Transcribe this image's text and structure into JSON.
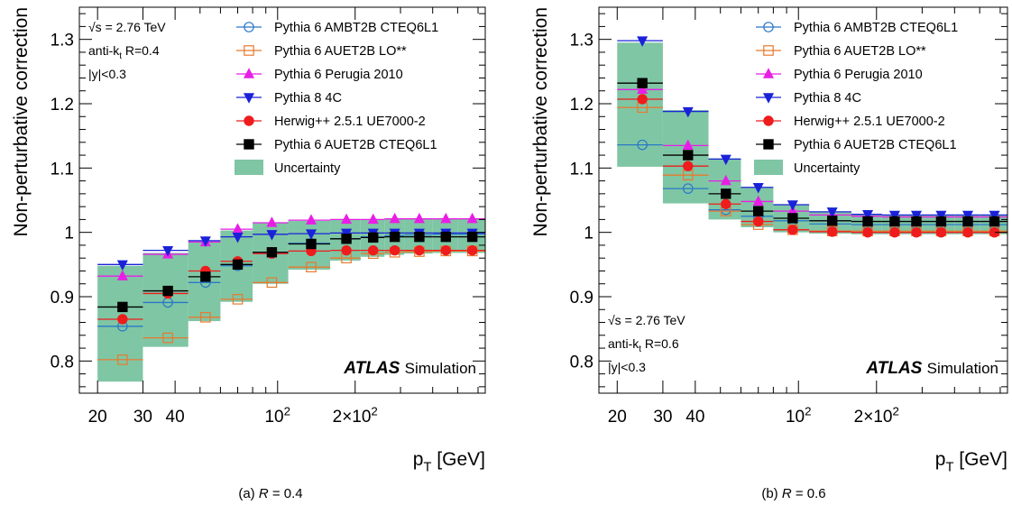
{
  "colors": {
    "band": "#7fc6a4",
    "ambt2b": "#2a78c8",
    "auet2b_lo": "#e8792e",
    "perugia": "#e81ee6",
    "p8": "#1a22d8",
    "herwig": "#ee1c1c",
    "auet2b_cteq": "#000000"
  },
  "chart_data": [
    {
      "type": "scatter",
      "id": "R04",
      "caption": "(a)  R = 0.4",
      "ylabel": "Non-perturbative correction",
      "xlabel": "p_T [GeV]",
      "xscale": "log",
      "xlim": [
        17,
        640
      ],
      "ylim": [
        0.75,
        1.35
      ],
      "x_ticks": [
        "20",
        "30",
        "40",
        "10^2",
        "2×10^2"
      ],
      "y_ticks": [
        "0.8",
        "0.9",
        "1",
        "1.1",
        "1.2",
        "1.3"
      ],
      "annotations": {
        "energy": "√s = 2.76 TeV",
        "algo": "anti-k_t R=0.4",
        "rapidity": "|y|<0.3",
        "atlas": "ATLAS",
        "sim": "Simulation"
      },
      "bins": [
        20,
        30,
        45,
        60,
        80,
        110,
        160,
        210,
        260,
        310,
        400,
        500,
        640
      ],
      "x_centers": [
        25,
        37.5,
        52.5,
        70,
        95,
        135,
        185,
        235,
        285,
        355,
        450,
        570
      ],
      "band": {
        "name": "Uncertainty",
        "low": [
          0.768,
          0.822,
          0.862,
          0.892,
          0.92,
          0.942,
          0.956,
          0.962,
          0.965,
          0.967,
          0.968,
          0.968
        ],
        "high": [
          0.948,
          0.968,
          0.985,
          1.003,
          1.015,
          1.018,
          1.02,
          1.02,
          1.021,
          1.021,
          1.021,
          1.021
        ]
      },
      "series": [
        {
          "name": "Pythia 6 AMBT2B CTEQ6L1",
          "key": "ambt2b",
          "marker": "circle-open",
          "values": [
            0.854,
            0.891,
            0.922,
            0.948,
            0.969,
            0.983,
            0.99,
            0.993,
            0.995,
            0.996,
            0.997,
            0.997
          ]
        },
        {
          "name": "Pythia 6 AUET2B LO**",
          "key": "auet2b_lo",
          "marker": "square-open",
          "values": [
            0.802,
            0.836,
            0.868,
            0.896,
            0.922,
            0.946,
            0.96,
            0.967,
            0.969,
            0.97,
            0.971,
            0.971
          ]
        },
        {
          "name": "Pythia 6 Perugia 2010",
          "key": "perugia",
          "marker": "triangle-up",
          "values": [
            0.932,
            0.966,
            0.985,
            1.005,
            1.015,
            1.019,
            1.02,
            1.02,
            1.021,
            1.021,
            1.021,
            1.021
          ]
        },
        {
          "name": "Pythia 8 4C",
          "key": "p8",
          "marker": "triangle-down",
          "values": [
            0.95,
            0.972,
            0.987,
            0.993,
            0.997,
            0.998,
            0.999,
            0.999,
            0.999,
            0.999,
            0.999,
            0.999
          ]
        },
        {
          "name": "Herwig++ 2.5.1 UE7000-2",
          "key": "herwig",
          "marker": "circle",
          "values": [
            0.865,
            0.905,
            0.94,
            0.955,
            0.967,
            0.971,
            0.972,
            0.972,
            0.972,
            0.972,
            0.972,
            0.972
          ]
        },
        {
          "name": "Pythia 6 AUET2B CTEQ6L1",
          "key": "auet2b_cteq",
          "marker": "square",
          "values": [
            0.884,
            0.909,
            0.931,
            0.95,
            0.969,
            0.982,
            0.99,
            0.992,
            0.993,
            0.993,
            0.993,
            0.993
          ]
        }
      ]
    },
    {
      "type": "scatter",
      "id": "R06",
      "caption": "(b)  R = 0.6",
      "ylabel": "Non-perturbative correction",
      "xlabel": "p_T [GeV]",
      "xscale": "log",
      "xlim": [
        17,
        640
      ],
      "ylim": [
        0.75,
        1.35
      ],
      "x_ticks": [
        "20",
        "30",
        "40",
        "10^2",
        "2×10^2"
      ],
      "y_ticks": [
        "0.8",
        "0.9",
        "1",
        "1.1",
        "1.2",
        "1.3"
      ],
      "annotations": {
        "energy": "√s = 2.76 TeV",
        "algo": "anti-k_t R=0.6",
        "rapidity": "|y|<0.3",
        "atlas": "ATLAS",
        "sim": "Simulation"
      },
      "bins": [
        20,
        30,
        45,
        60,
        80,
        110,
        160,
        210,
        260,
        310,
        400,
        500,
        640
      ],
      "x_centers": [
        25,
        37.5,
        52.5,
        70,
        95,
        135,
        185,
        235,
        285,
        355,
        450,
        570
      ],
      "band": {
        "name": "Uncertainty",
        "low": [
          1.102,
          1.045,
          1.02,
          1.008,
          1.0,
          0.998,
          0.997,
          0.997,
          0.997,
          0.997,
          0.997,
          0.997
        ],
        "high": [
          1.295,
          1.19,
          1.115,
          1.07,
          1.043,
          1.032,
          1.028,
          1.027,
          1.027,
          1.027,
          1.027,
          1.027
        ]
      },
      "series": [
        {
          "name": "Pythia 6 AMBT2B CTEQ6L1",
          "key": "ambt2b",
          "marker": "circle-open",
          "values": [
            1.136,
            1.068,
            1.035,
            1.025,
            1.018,
            1.013,
            1.012,
            1.012,
            1.012,
            1.012,
            1.012,
            1.012
          ]
        },
        {
          "name": "Pythia 6 AUET2B LO**",
          "key": "auet2b_lo",
          "marker": "square-open",
          "values": [
            1.194,
            1.089,
            1.033,
            1.012,
            1.004,
            1.002,
            1.002,
            1.002,
            1.002,
            1.002,
            1.002,
            1.002
          ]
        },
        {
          "name": "Pythia 6 Perugia 2010",
          "key": "perugia",
          "marker": "triangle-up",
          "values": [
            1.222,
            1.135,
            1.08,
            1.048,
            1.033,
            1.027,
            1.025,
            1.024,
            1.024,
            1.024,
            1.024,
            1.024
          ]
        },
        {
          "name": "Pythia 8 4C",
          "key": "p8",
          "marker": "triangle-down",
          "values": [
            1.298,
            1.188,
            1.114,
            1.07,
            1.043,
            1.032,
            1.028,
            1.027,
            1.027,
            1.027,
            1.027,
            1.027
          ]
        },
        {
          "name": "Herwig++ 2.5.1 UE7000-2",
          "key": "herwig",
          "marker": "circle",
          "values": [
            1.207,
            1.103,
            1.044,
            1.017,
            1.004,
            1.001,
            1.0,
            1.0,
            1.0,
            1.0,
            1.0,
            1.0
          ]
        },
        {
          "name": "Pythia 6 AUET2B CTEQ6L1",
          "key": "auet2b_cteq",
          "marker": "square",
          "values": [
            1.232,
            1.12,
            1.06,
            1.033,
            1.022,
            1.018,
            1.017,
            1.017,
            1.017,
            1.017,
            1.017,
            1.017
          ]
        }
      ]
    }
  ]
}
